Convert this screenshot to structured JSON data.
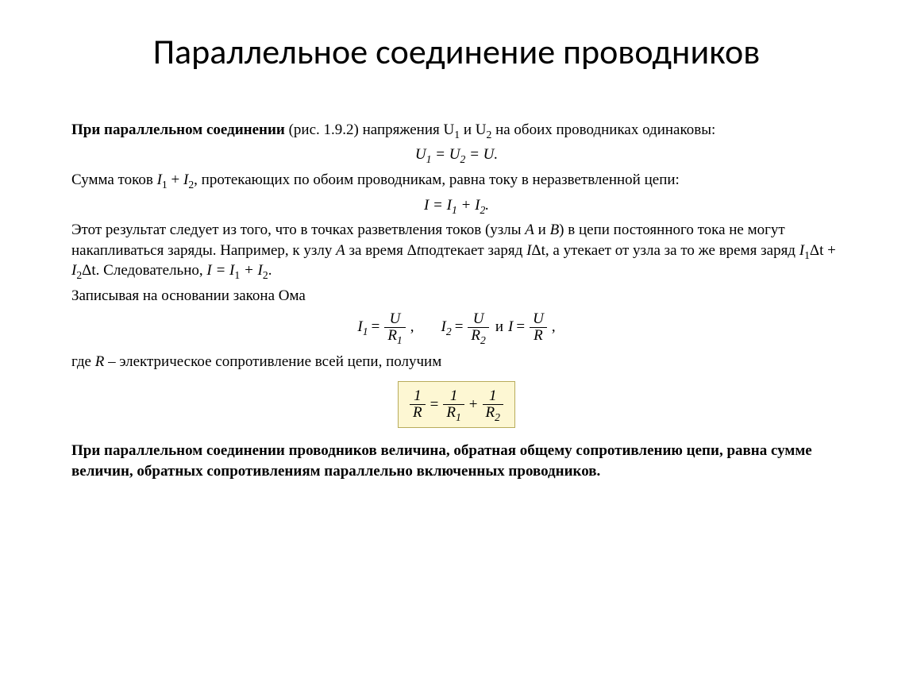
{
  "title": "Параллельное соединение проводников",
  "p1_lead": "При параллельном соединении",
  "p1_rest": " (рис. 1.9.2) напряжения U",
  "p1_sub1": "1",
  "p1_mid": " и U",
  "p1_sub2": "2",
  "p1_end": " на обоих проводниках одинаковы:",
  "eq1_a": "U",
  "eq1_s1": "1",
  "eq1_eq": " = ",
  "eq1_b": "U",
  "eq1_s2": "2",
  "eq1_eq2": " = ",
  "eq1_c": "U.",
  "p2_a": "Сумма токов ",
  "p2_i1": "I",
  "p2_s1": "1",
  "p2_plus": " + ",
  "p2_i2": "I",
  "p2_s2": "2",
  "p2_b": ", протекающих по обоим проводникам, равна току в неразветвленной цепи:",
  "eq2_a": "I = I",
  "eq2_s1": "1",
  "eq2_mid": " + I",
  "eq2_s2": "2",
  "eq2_end": ".",
  "p3_a": "Этот результат следует из того, что в точках разветвления токов (узлы ",
  "p3_A": "A",
  "p3_and": " и ",
  "p3_B": "B",
  "p3_b": ") в цепи постоянного тока не могут накапливаться заряды. Например, к узлу ",
  "p3_A2": "A",
  "p3_c": " за время Δ",
  "p3_t": "t",
  "p3_d": "подтекает заряд ",
  "p3_Idt": "I",
  "p3_dt": "Δt",
  "p3_e": ", а утекает от узла за то же время заряд ",
  "p3_I1": "I",
  "p3_ss1": "1",
  "p3_dt1": "Δt",
  "p3_pl": " + ",
  "p3_I2": "I",
  "p3_ss2": "2",
  "p3_dt2": "Δt",
  "p3_f": ". Следовательно, ",
  "p3_g": "I = I",
  "p3_gs1": "1",
  "p3_h": " + I",
  "p3_gs2": "2",
  "p3_i": ".",
  "p4": "Записывая на основании закона Ома",
  "fr_I1": "I",
  "fr_s1": "1",
  "fr_eq": " = ",
  "fr_U": "U",
  "fr_R": "R",
  "fr_r1": "1",
  "fr_comma": ",",
  "fr_I2": "I",
  "fr_s2": "2",
  "fr_r2": "2",
  "fr_and": "  и  ",
  "fr_I": "I",
  "p5_a": "где ",
  "p5_R": "R",
  "p5_b": " – электрическое сопротивление всей цепи, получим",
  "box_one": "1",
  "box_R": "R",
  "box_eq": " = ",
  "box_R1": "R",
  "box_s1": "1",
  "box_plus": " + ",
  "box_R2": "R",
  "box_s2": "2",
  "p6": "При параллельном соединении проводников величина, обратная общему сопротивлению цепи, равна сумме величин, обратных сопротивлениям параллельно включенных проводников.",
  "style": {
    "page_bg": "#ffffff",
    "text_color": "#000000",
    "title_font": "Calibri Light",
    "title_size_pt": 33,
    "body_font": "Times New Roman",
    "body_size_pt": 14,
    "box_bg": "#fdf7d3",
    "box_border": "#b8ab5b"
  }
}
